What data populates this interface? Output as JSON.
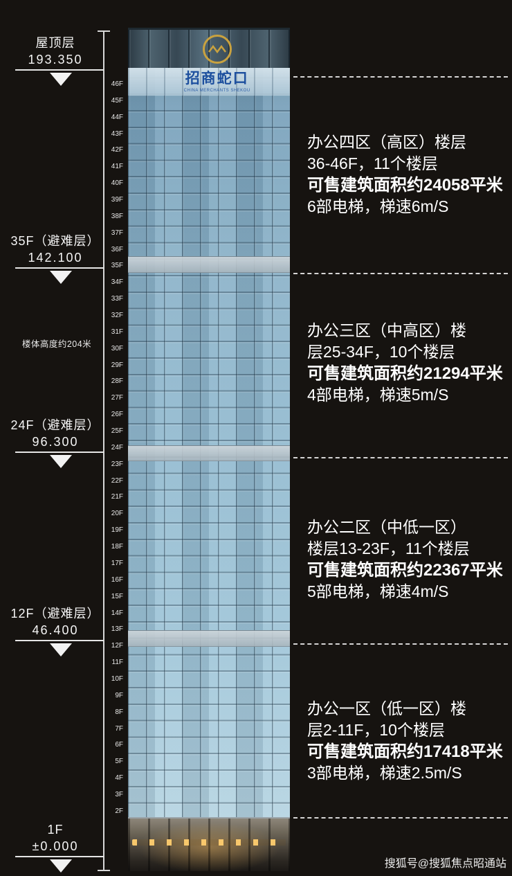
{
  "left_markers": [
    {
      "label": "屋顶层",
      "value": "193.350"
    },
    {
      "label": "35F（避难层）",
      "value": "142.100"
    },
    {
      "label": "24F（避难层）",
      "value": "96.300"
    },
    {
      "label": "12F（避难层）",
      "value": "46.400"
    },
    {
      "label": "1F",
      "value": "±0.000"
    }
  ],
  "height_note": "楼体高度约204米",
  "building": {
    "logo_text": "招商蛇口",
    "logo_subtext": "CHINA MERCHANTS SHEKOU"
  },
  "floors": [
    "46F",
    "45F",
    "44F",
    "43F",
    "42F",
    "41F",
    "40F",
    "39F",
    "38F",
    "37F",
    "36F",
    "35F",
    "34F",
    "33F",
    "32F",
    "31F",
    "30F",
    "29F",
    "28F",
    "27F",
    "26F",
    "25F",
    "24F",
    "23F",
    "22F",
    "21F",
    "20F",
    "19F",
    "18F",
    "17F",
    "16F",
    "15F",
    "14F",
    "13F",
    "12F",
    "11F",
    "10F",
    "9F",
    "8F",
    "7F",
    "6F",
    "5F",
    "4F",
    "3F",
    "2F"
  ],
  "zones": [
    {
      "line1": "办公四区（高区）楼层",
      "line2": "36-46F，11个楼层",
      "area": "可售建筑面积约24058平米",
      "elevators": "6部电梯，梯速6m/S"
    },
    {
      "line1": "办公三区（中高区）楼",
      "line2": "层25-34F，10个楼层",
      "area": "可售建筑面积约21294平米",
      "elevators": "4部电梯，梯速5m/S"
    },
    {
      "line1": "办公二区（中低一区）",
      "line2": "楼层13-23F，11个楼层",
      "area": "可售建筑面积约22367平米",
      "elevators": "5部电梯，梯速4m/S"
    },
    {
      "line1": "办公一区（低一区）楼",
      "line2": "层2-11F，10个楼层",
      "area": "可售建筑面积约17418平米",
      "elevators": "3部电梯，梯速2.5m/S"
    }
  ],
  "watermark": "搜狐号@搜狐焦点昭通站",
  "colors": {
    "background": "#161310",
    "facade_glass": "#8cb3c9",
    "logo_gold": "#c9a23f",
    "logo_blue": "#1d4f9e"
  }
}
